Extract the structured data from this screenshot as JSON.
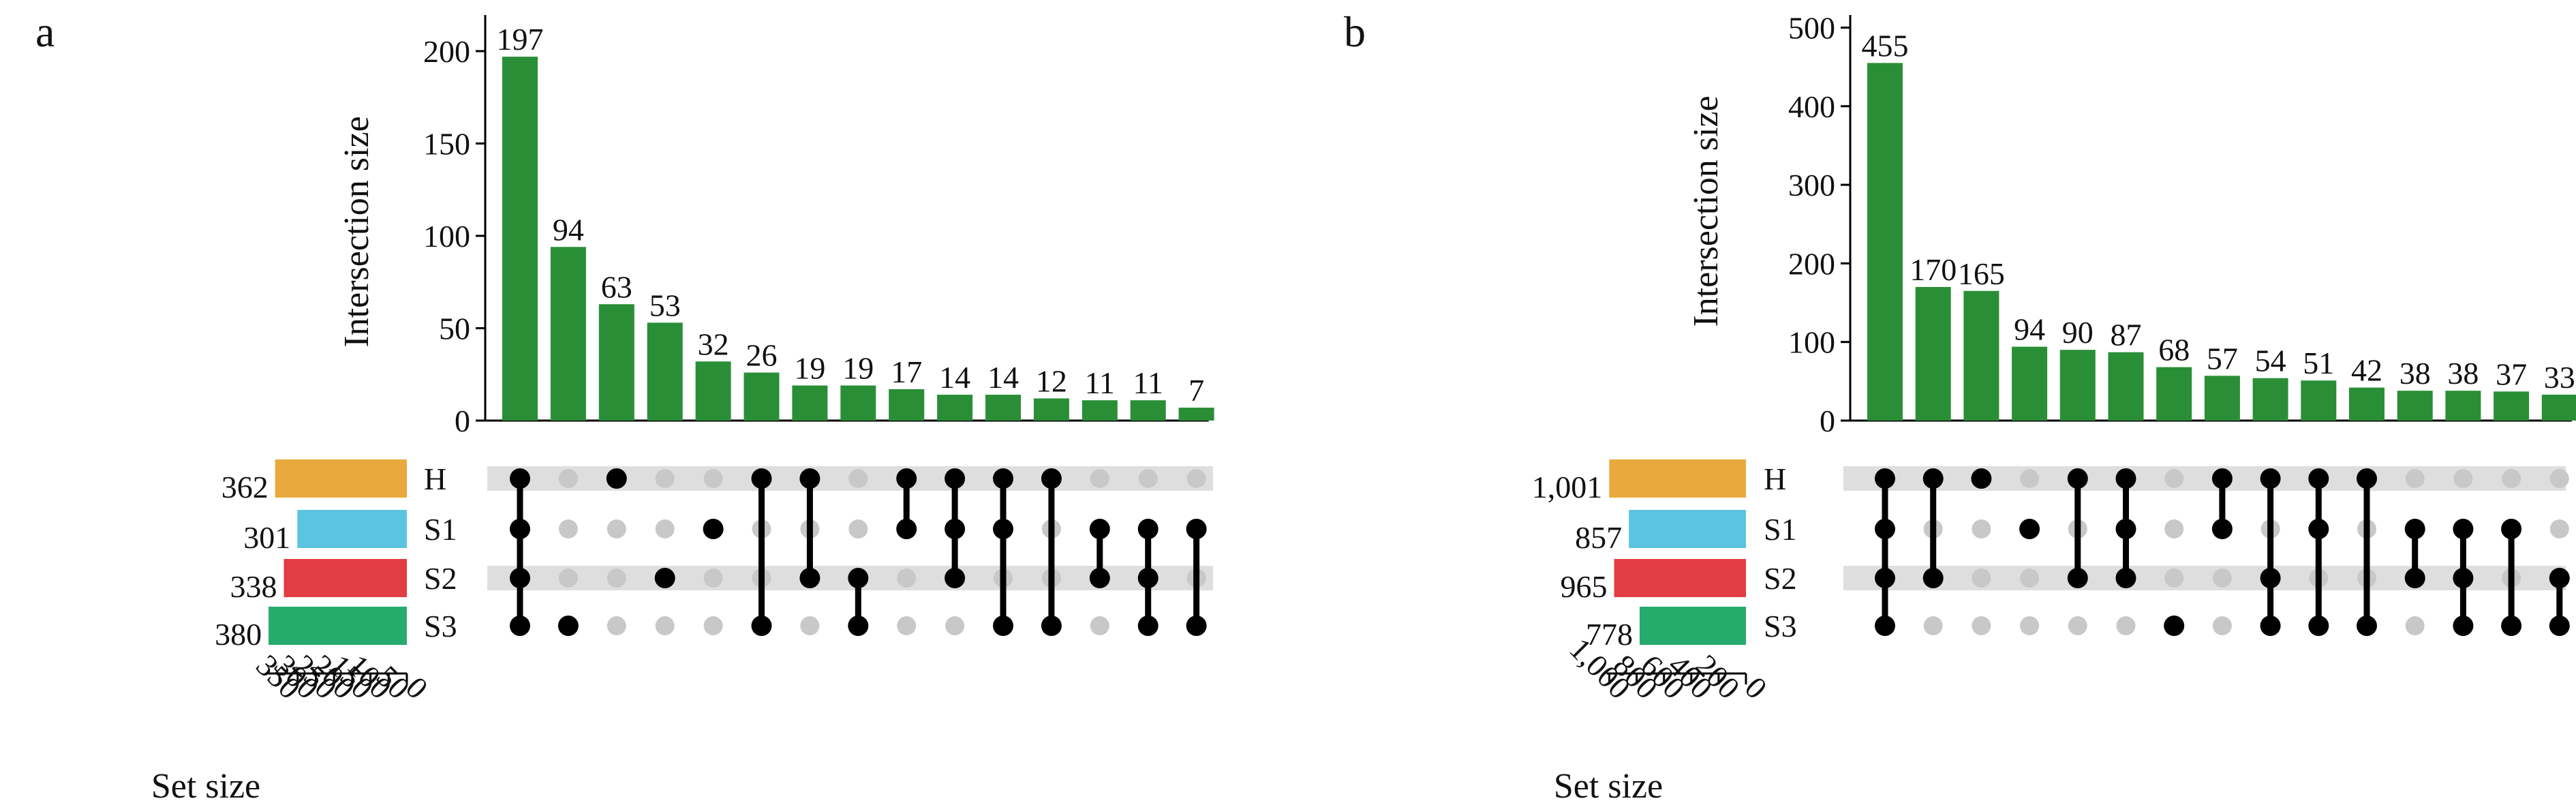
{
  "figure": {
    "panels": [
      {
        "letter": "a",
        "intersection_axis_label": "Intersection size",
        "set_axis_label": "Set size"
      },
      {
        "letter": "b",
        "intersection_axis_label": "Intersection size",
        "set_axis_label": "Set size"
      }
    ]
  },
  "colors": {
    "bar": "#2a8e37",
    "dot_active": "#000000",
    "dot_inactive": "#c8c8c8",
    "stripe": "#dedede",
    "axis": "#000000"
  },
  "chart_data": [
    {
      "type": "upset",
      "panel": "a",
      "ylabel": "Intersection size",
      "ylim": [
        0,
        210
      ],
      "yticks": [
        0,
        50,
        100,
        150,
        200
      ],
      "set_xlabel": "Set size",
      "set_xlim": [
        0,
        390
      ],
      "set_xticks": [
        0,
        50,
        100,
        150,
        200,
        250,
        300,
        350
      ],
      "sets": [
        {
          "name": "H",
          "size": 362,
          "color": "#e8aa3d"
        },
        {
          "name": "S1",
          "size": 301,
          "color": "#5bc4e0"
        },
        {
          "name": "S2",
          "size": 338,
          "color": "#e23d43"
        },
        {
          "name": "S3",
          "size": 380,
          "color": "#26ab6d"
        }
      ],
      "intersections": [
        {
          "sets": [
            "H",
            "S1",
            "S2",
            "S3"
          ],
          "size": 197
        },
        {
          "sets": [
            "S3"
          ],
          "size": 94
        },
        {
          "sets": [
            "H"
          ],
          "size": 63
        },
        {
          "sets": [
            "S2"
          ],
          "size": 53
        },
        {
          "sets": [
            "S1"
          ],
          "size": 32
        },
        {
          "sets": [
            "H",
            "S3"
          ],
          "size": 26
        },
        {
          "sets": [
            "H",
            "S2"
          ],
          "size": 19
        },
        {
          "sets": [
            "S2",
            "S3"
          ],
          "size": 19
        },
        {
          "sets": [
            "H",
            "S1"
          ],
          "size": 17
        },
        {
          "sets": [
            "H",
            "S1",
            "S2"
          ],
          "size": 14
        },
        {
          "sets": [
            "H",
            "S1",
            "S3"
          ],
          "size": 14
        },
        {
          "sets": [
            "H",
            "S3"
          ],
          "size": 12
        },
        {
          "sets": [
            "S1",
            "S2"
          ],
          "size": 11
        },
        {
          "sets": [
            "S1",
            "S2",
            "S3"
          ],
          "size": 11
        },
        {
          "sets": [
            "S1",
            "S3"
          ],
          "size": 7
        }
      ]
    },
    {
      "type": "upset",
      "panel": "b",
      "ylabel": "Intersection size",
      "ylim": [
        0,
        520
      ],
      "yticks": [
        0,
        100,
        200,
        300,
        400,
        500
      ],
      "set_xlabel": "Set size",
      "set_xlim": [
        0,
        1030
      ],
      "set_xticks": [
        0,
        200,
        400,
        600,
        800,
        1000
      ],
      "sets": [
        {
          "name": "H",
          "size": 1001,
          "color": "#e8aa3d"
        },
        {
          "name": "S1",
          "size": 857,
          "color": "#5bc4e0"
        },
        {
          "name": "S2",
          "size": 965,
          "color": "#e23d43"
        },
        {
          "name": "S3",
          "size": 778,
          "color": "#26ab6d"
        }
      ],
      "intersections": [
        {
          "sets": [
            "H",
            "S1",
            "S2",
            "S3"
          ],
          "size": 455
        },
        {
          "sets": [
            "H",
            "S2"
          ],
          "size": 170
        },
        {
          "sets": [
            "H"
          ],
          "size": 165
        },
        {
          "sets": [
            "S1"
          ],
          "size": 94
        },
        {
          "sets": [
            "H",
            "S2"
          ],
          "size": 90
        },
        {
          "sets": [
            "H",
            "S1",
            "S2"
          ],
          "size": 87
        },
        {
          "sets": [
            "S3"
          ],
          "size": 68
        },
        {
          "sets": [
            "H",
            "S1"
          ],
          "size": 57
        },
        {
          "sets": [
            "H",
            "S2",
            "S3"
          ],
          "size": 54
        },
        {
          "sets": [
            "H",
            "S1",
            "S3"
          ],
          "size": 51
        },
        {
          "sets": [
            "H",
            "S3"
          ],
          "size": 42
        },
        {
          "sets": [
            "S1",
            "S2"
          ],
          "size": 38
        },
        {
          "sets": [
            "S1",
            "S2",
            "S3"
          ],
          "size": 38
        },
        {
          "sets": [
            "S1",
            "S3"
          ],
          "size": 37
        },
        {
          "sets": [
            "S2",
            "S3"
          ],
          "size": 33
        }
      ]
    }
  ]
}
